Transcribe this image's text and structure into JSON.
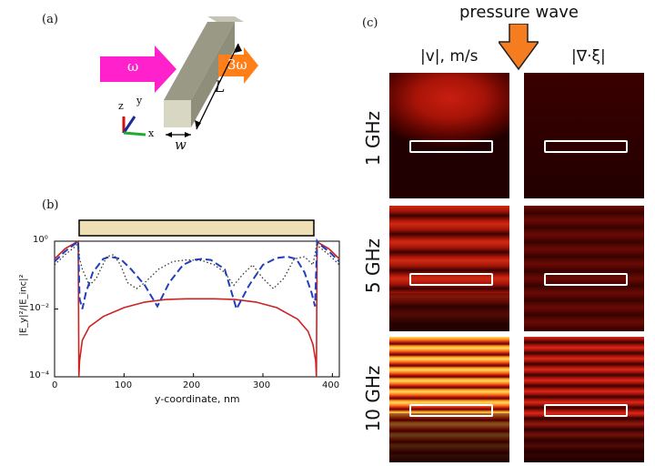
{
  "panels": {
    "a": {
      "label": "(a)",
      "input_arrow": "ω",
      "output_arrow": "3ω",
      "length_label": "L",
      "width_label": "w",
      "axes": {
        "x": "x",
        "y": "y",
        "z": "z"
      },
      "colors": {
        "input": "#ff22cc",
        "output": "#ff7f1a",
        "bar": "#a9a996"
      }
    },
    "b": {
      "label": "(b)",
      "ylabel": "|E_y|²/|E_inc|²",
      "xlabel": "y-coordinate, nm",
      "xticks": [
        "0",
        "100",
        "200",
        "300",
        "400"
      ],
      "yticks": [
        "10⁰",
        "10⁻²",
        "10⁻⁴"
      ]
    },
    "c": {
      "label": "(c)",
      "pressure_label": "pressure wave",
      "col1": "|v|, m/s",
      "col2": "|∇·ξ|",
      "rows": [
        "1 GHz",
        "5 GHz",
        "10 GHz"
      ],
      "arrow_color": "#f57c1f"
    }
  },
  "chart_data": {
    "type": "line",
    "title": "",
    "xlabel": "y-coordinate, nm",
    "ylabel": "|Ey|^2/|Einc|^2",
    "xlim": [
      0,
      410
    ],
    "ylim": [
      0.0001,
      1
    ],
    "log_y": true,
    "grid": false,
    "bar_region": [
      35,
      378
    ],
    "series": [
      {
        "color": "#cc2222",
        "style": "solid",
        "x": [
          0,
          15,
          30,
          34,
          35,
          36,
          40,
          50,
          70,
          100,
          130,
          160,
          190,
          210,
          230,
          260,
          290,
          320,
          350,
          365,
          372,
          376,
          377,
          378,
          380,
          395,
          410
        ],
        "y": [
          0.3,
          0.6,
          0.9,
          1.0,
          0.0001,
          0.0003,
          0.0012,
          0.003,
          0.006,
          0.011,
          0.016,
          0.019,
          0.02,
          0.02,
          0.02,
          0.019,
          0.016,
          0.011,
          0.005,
          0.0022,
          0.0009,
          0.0003,
          0.0001,
          1.0,
          0.9,
          0.6,
          0.3
        ]
      },
      {
        "color": "#1f3fbf",
        "style": "dashed",
        "x": [
          0,
          15,
          30,
          34,
          36,
          40,
          45,
          55,
          70,
          80,
          95,
          110,
          130,
          148,
          165,
          185,
          200,
          212,
          225,
          245,
          262,
          280,
          300,
          320,
          335,
          348,
          360,
          370,
          375,
          378,
          380,
          395,
          410
        ],
        "y": [
          0.25,
          0.5,
          0.85,
          1.0,
          0.02,
          0.01,
          0.03,
          0.12,
          0.3,
          0.35,
          0.3,
          0.15,
          0.05,
          0.012,
          0.06,
          0.2,
          0.28,
          0.3,
          0.28,
          0.15,
          0.01,
          0.05,
          0.2,
          0.32,
          0.35,
          0.3,
          0.12,
          0.03,
          0.012,
          1.0,
          0.85,
          0.5,
          0.25
        ]
      },
      {
        "color": "#333333",
        "style": "dotted",
        "x": [
          0,
          15,
          30,
          34,
          36,
          40,
          50,
          60,
          75,
          85,
          95,
          105,
          118,
          130,
          150,
          170,
          190,
          212,
          230,
          245,
          258,
          270,
          285,
          300,
          315,
          330,
          345,
          360,
          372,
          378,
          380,
          395,
          410
        ],
        "y": [
          0.2,
          0.4,
          0.7,
          0.9,
          0.3,
          0.15,
          0.05,
          0.08,
          0.35,
          0.4,
          0.2,
          0.06,
          0.04,
          0.06,
          0.15,
          0.25,
          0.28,
          0.27,
          0.2,
          0.12,
          0.05,
          0.1,
          0.2,
          0.08,
          0.04,
          0.08,
          0.3,
          0.35,
          0.2,
          0.9,
          0.7,
          0.4,
          0.2
        ]
      }
    ]
  }
}
